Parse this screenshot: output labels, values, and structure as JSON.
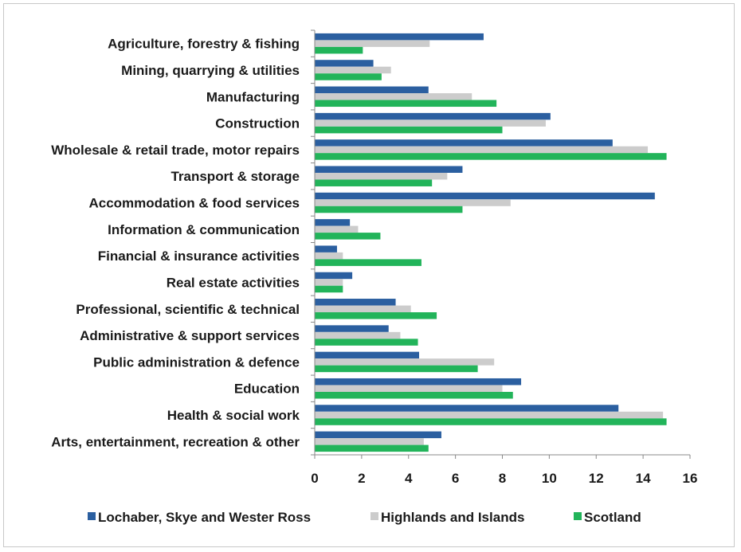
{
  "chart_data": {
    "type": "bar",
    "orientation": "horizontal",
    "categories": [
      "Agriculture, forestry & fishing",
      "Mining, quarrying & utilities",
      "Manufacturing",
      "Construction",
      "Wholesale & retail trade, motor repairs",
      "Transport & storage",
      "Accommodation & food services",
      "Information & communication",
      "Financial & insurance activities",
      "Real estate activities",
      "Professional, scientific & technical",
      "Administrative & support services",
      "Public administration & defence",
      "Education",
      "Health & social work",
      "Arts, entertainment, recreation & other"
    ],
    "series": [
      {
        "name": "Lochaber, Skye and Wester Ross",
        "color": "#2b5fa0",
        "values": [
          7.2,
          2.5,
          4.85,
          10.05,
          12.7,
          6.3,
          14.5,
          1.5,
          0.95,
          1.6,
          3.45,
          3.15,
          4.45,
          8.8,
          12.95,
          5.4
        ]
      },
      {
        "name": "Highlands and Islands",
        "color": "#cccccc",
        "values": [
          4.9,
          3.25,
          6.7,
          9.85,
          14.2,
          5.65,
          8.35,
          1.85,
          1.2,
          1.2,
          4.1,
          3.65,
          7.65,
          8.0,
          14.85,
          4.65
        ]
      },
      {
        "name": "Scotland",
        "color": "#22b45a",
        "values": [
          2.05,
          2.85,
          7.75,
          8.0,
          15.0,
          5.0,
          6.3,
          2.8,
          4.55,
          1.2,
          5.2,
          4.4,
          6.95,
          8.45,
          15.0,
          4.85
        ]
      }
    ],
    "xlim": [
      0,
      16
    ],
    "xticks": [
      0,
      2,
      4,
      6,
      8,
      10,
      12,
      14,
      16
    ],
    "xlabel": "",
    "ylabel": "",
    "title": "",
    "grid": false,
    "legend_position": "bottom"
  }
}
